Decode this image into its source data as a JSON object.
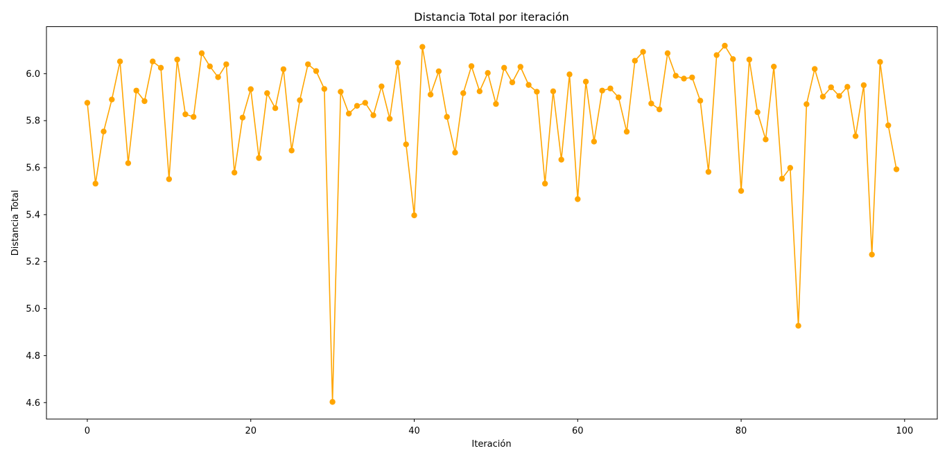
{
  "chart_data": {
    "type": "line",
    "title": "Distancia Total por iteración",
    "xlabel": "Iteración",
    "ylabel": "Distancia Total",
    "xlim": [
      -5,
      104
    ],
    "ylim": [
      4.53,
      6.2
    ],
    "xticks": [
      0,
      20,
      40,
      60,
      80,
      100
    ],
    "yticks": [
      4.6,
      4.8,
      5.0,
      5.2,
      5.4,
      5.6,
      5.8,
      6.0
    ],
    "ytick_labels": [
      "4.6",
      "4.8",
      "5.0",
      "5.2",
      "5.4",
      "5.6",
      "5.8",
      "6.0"
    ],
    "grid": false,
    "color": "#ffa500",
    "x": [
      0,
      1,
      2,
      3,
      4,
      5,
      6,
      7,
      8,
      9,
      10,
      11,
      12,
      13,
      14,
      15,
      16,
      17,
      18,
      19,
      20,
      21,
      22,
      23,
      24,
      25,
      26,
      27,
      28,
      29,
      30,
      31,
      32,
      33,
      34,
      35,
      36,
      37,
      38,
      39,
      40,
      41,
      42,
      43,
      44,
      45,
      46,
      47,
      48,
      49,
      50,
      51,
      52,
      53,
      54,
      55,
      56,
      57,
      58,
      59,
      60,
      61,
      62,
      63,
      64,
      65,
      66,
      67,
      68,
      69,
      70,
      71,
      72,
      73,
      74,
      75,
      76,
      77,
      78,
      79,
      80,
      81,
      82,
      83,
      84,
      85,
      86,
      87,
      88,
      89,
      90,
      91,
      92,
      93,
      94,
      95,
      96,
      97,
      98,
      99
    ],
    "y": [
      5.876,
      5.532,
      5.754,
      5.89,
      6.052,
      5.619,
      5.928,
      5.883,
      6.052,
      6.025,
      5.551,
      6.06,
      5.827,
      5.816,
      6.087,
      6.031,
      5.985,
      6.04,
      5.579,
      5.813,
      5.934,
      5.641,
      5.917,
      5.853,
      6.019,
      5.673,
      5.887,
      6.04,
      6.011,
      5.935,
      4.603,
      5.923,
      5.83,
      5.863,
      5.876,
      5.823,
      5.946,
      5.808,
      6.046,
      5.699,
      5.397,
      6.114,
      5.911,
      6.01,
      5.816,
      5.664,
      5.917,
      6.032,
      5.925,
      6.003,
      5.871,
      6.025,
      5.963,
      6.029,
      5.952,
      5.923,
      5.532,
      5.925,
      5.634,
      5.997,
      5.466,
      5.966,
      5.711,
      5.928,
      5.937,
      5.899,
      5.753,
      6.055,
      6.093,
      5.873,
      5.848,
      6.087,
      5.991,
      5.979,
      5.984,
      5.885,
      5.582,
      6.079,
      6.119,
      6.062,
      5.501,
      6.06,
      5.836,
      5.72,
      6.03,
      5.553,
      5.599,
      4.927,
      5.87,
      6.02,
      5.902,
      5.942,
      5.905,
      5.944,
      5.734,
      5.951,
      5.23,
      6.05,
      5.78,
      5.593
    ]
  }
}
